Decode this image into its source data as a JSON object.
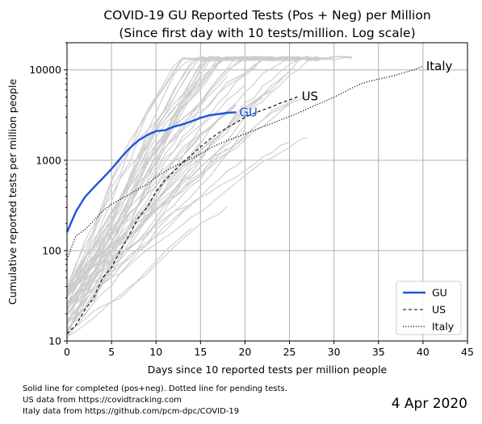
{
  "chart_data": {
    "type": "line",
    "title": "COVID-19 GU Reported Tests (Pos + Neg) per Million",
    "subtitle": "(Since first day with 10 tests/million. Log scale)",
    "xlabel": "Days since 10 reported tests per million people",
    "ylabel": "Cumulative reported tests per million people",
    "xlim": [
      0,
      45
    ],
    "ylim": [
      10,
      20000
    ],
    "y_scale": "log",
    "grid": true,
    "x_ticks": [
      "0",
      "5",
      "10",
      "15",
      "20",
      "25",
      "30",
      "35",
      "40",
      "45"
    ],
    "y_ticks": [
      "10",
      "100",
      "1000",
      "10000"
    ],
    "legend_position": "lower-right",
    "series": [
      {
        "name": "GU",
        "color": "#1f55e0",
        "style": "solid",
        "x": [
          0,
          1,
          2,
          3,
          4,
          5,
          6,
          7,
          8,
          9,
          10,
          11,
          12,
          13,
          14,
          15,
          16,
          17,
          18,
          19
        ],
        "y": [
          160,
          270,
          390,
          500,
          630,
          800,
          1050,
          1350,
          1650,
          1900,
          2100,
          2150,
          2350,
          2500,
          2700,
          2950,
          3150,
          3250,
          3350,
          3400
        ]
      },
      {
        "name": "US",
        "color": "#000000",
        "style": "dashed",
        "x": [
          0,
          1,
          2,
          3,
          4,
          5,
          6,
          7,
          8,
          9,
          10,
          11,
          12,
          13,
          14,
          15,
          16,
          17,
          18,
          19,
          20,
          21,
          22,
          23,
          24,
          25,
          26
        ],
        "y": [
          12,
          15,
          22,
          30,
          50,
          65,
          100,
          150,
          230,
          300,
          450,
          600,
          750,
          950,
          1150,
          1400,
          1700,
          2000,
          2300,
          2600,
          3000,
          3300,
          3600,
          3900,
          4300,
          4650,
          5100
        ]
      },
      {
        "name": "Italy",
        "color": "#000000",
        "style": "dotted",
        "x": [
          0,
          1,
          2,
          3,
          4,
          5,
          6,
          7,
          8,
          9,
          10,
          11,
          12,
          13,
          14,
          15,
          16,
          17,
          18,
          19,
          20,
          21,
          22,
          23,
          24,
          25,
          26,
          27,
          28,
          29,
          30,
          31,
          32,
          33,
          34,
          35,
          36,
          37,
          38,
          39,
          40
        ],
        "y": [
          80,
          145,
          170,
          215,
          275,
          325,
          370,
          420,
          480,
          540,
          650,
          750,
          850,
          950,
          1050,
          1180,
          1350,
          1500,
          1650,
          1800,
          1950,
          2150,
          2350,
          2550,
          2800,
          3050,
          3350,
          3700,
          4100,
          4500,
          5000,
          5600,
          6300,
          7000,
          7500,
          7900,
          8300,
          8800,
          9400,
          10100,
          11000
        ]
      }
    ],
    "annotations": [
      {
        "text": "GU",
        "color": "#1f55e0",
        "x": 19,
        "y": 3400
      },
      {
        "text": "US",
        "color": "#000000",
        "x": 26,
        "y": 5100
      },
      {
        "text": "Italy",
        "color": "#000000",
        "x": 40,
        "y": 11000
      }
    ],
    "background_series_color": "#cccccc"
  },
  "footnotes": [
    "Solid line for completed (pos+neg). Dotted line for pending tests.",
    "US data from https://covidtracking.com",
    "Italy data from https://github.com/pcm-dpc/COVID-19"
  ],
  "date_label": "4 Apr 2020"
}
